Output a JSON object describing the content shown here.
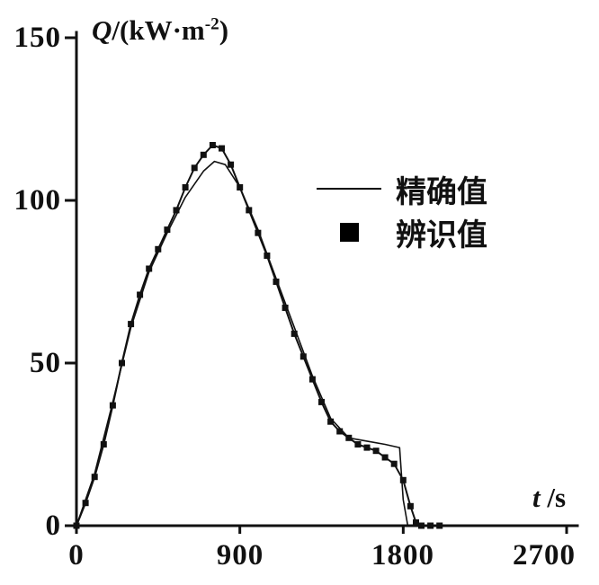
{
  "colors": {
    "ink": "#111111",
    "background": "#ffffff"
  },
  "chart_data": {
    "type": "line",
    "title": "",
    "ylabel": {
      "symbol": "Q",
      "pre": "/(kW·m",
      "sup": "-2",
      "post": ")"
    },
    "xlabel": {
      "symbol": "t",
      "post": " /s"
    },
    "x_range": [
      0,
      2700
    ],
    "y_range": [
      0,
      150
    ],
    "x_ticks": [
      0,
      900,
      1800,
      2700
    ],
    "y_ticks": [
      0,
      50,
      100,
      150
    ],
    "x_tick_labels": [
      "0",
      "900",
      "1800",
      "2700"
    ],
    "y_tick_labels": [
      "0",
      "50",
      "100",
      "150"
    ],
    "grid": false,
    "legend_position": "upper-right-inside",
    "legend": [
      {
        "label": "精确值",
        "marker": "line"
      },
      {
        "label": "辨识值",
        "marker": "square"
      }
    ],
    "series": [
      {
        "name": "精确值",
        "style": "thin-line",
        "marker": "none",
        "x": [
          0,
          100,
          200,
          300,
          400,
          500,
          600,
          700,
          760,
          820,
          900,
          1000,
          1100,
          1200,
          1300,
          1400,
          1500,
          1600,
          1700,
          1780,
          1800,
          1825
        ],
        "y": [
          0,
          16,
          38,
          61,
          78,
          90,
          101,
          109,
          112,
          111,
          104,
          91,
          76,
          61,
          46,
          33,
          27,
          26,
          25,
          24,
          8,
          0
        ]
      },
      {
        "name": "辨识值",
        "style": "line-with-markers",
        "marker": "square",
        "x": [
          0,
          50,
          100,
          150,
          200,
          250,
          300,
          350,
          400,
          450,
          500,
          550,
          600,
          650,
          700,
          750,
          800,
          850,
          900,
          950,
          1000,
          1050,
          1100,
          1150,
          1200,
          1250,
          1300,
          1350,
          1400,
          1450,
          1500,
          1550,
          1600,
          1650,
          1700,
          1750,
          1800,
          1840,
          1870,
          1900,
          1950,
          2000
        ],
        "y": [
          0,
          7,
          15,
          25,
          37,
          50,
          62,
          71,
          79,
          85,
          91,
          97,
          104,
          110,
          114,
          117,
          116,
          111,
          104,
          97,
          90,
          83,
          75,
          67,
          59,
          52,
          45,
          38,
          32,
          29,
          27,
          25,
          24,
          23,
          21,
          19,
          14,
          6,
          1,
          0,
          0,
          0
        ]
      }
    ]
  }
}
